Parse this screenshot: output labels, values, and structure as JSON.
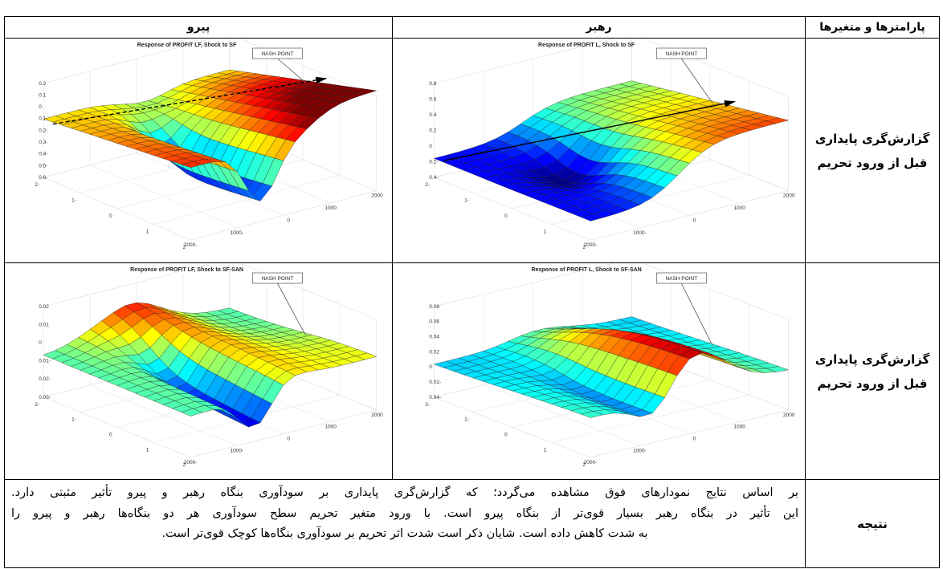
{
  "table": {
    "header": [
      "پارامترها و متغیرها",
      "رهبر",
      "پیرو"
    ],
    "rows": [
      {
        "label": [
          "گزارش‌گری پایداری",
          "قبل از ورود تحریم"
        ],
        "leader": {
          "title": "Response of PROFIT L, Shock to SF",
          "annotation": "NASH POINT",
          "z_ticks": [
            "0.8",
            "0.6",
            "0.4",
            "0.2",
            "0",
            "-0.2",
            "-0.4"
          ],
          "x_ticks": [
            "-2",
            "-1",
            "0",
            "1",
            "2"
          ],
          "y_ticks": [
            "-2000",
            "-1000",
            "0",
            "1000",
            "2000"
          ]
        },
        "follower": {
          "title": "Response of PROFIT LF, Shock to SF",
          "annotation": "NASH POINT",
          "z_ticks": [
            "0.2",
            "0.1",
            "0",
            "-0.1",
            "-0.2",
            "-0.3",
            "-0.4",
            "-0.5",
            "-0.6"
          ],
          "x_ticks": [
            "-2",
            "-1",
            "0",
            "1",
            "2"
          ],
          "y_ticks": [
            "-2000",
            "-1000",
            "0",
            "1000",
            "2000"
          ]
        }
      },
      {
        "label": [
          "گزارش‌گری پایداری",
          "قبل از ورود تحریم"
        ],
        "leader": {
          "title": "Response of  PROFIT L, Shock to SF-SAN",
          "annotation": "NASH POINT",
          "z_ticks": [
            "0.08",
            "0.06",
            "0.04",
            "0.02",
            "0",
            "-0.02",
            "-0.04"
          ],
          "x_ticks": [
            "-2",
            "-1",
            "0",
            "1",
            "2"
          ],
          "y_ticks": [
            "-2000",
            "-1000",
            "0",
            "1000",
            "2000"
          ]
        },
        "follower": {
          "title": "Response of PROFIT LF, Shock to SF-SAN",
          "annotation": "NASH POINT",
          "z_ticks": [
            "0.02",
            "0.01",
            "0",
            "-0.01",
            "-0.02",
            "-0.03"
          ],
          "x_ticks": [
            "-2",
            "-1",
            "0",
            "1",
            "2"
          ],
          "y_ticks": [
            "-2000",
            "-1000",
            "0",
            "1000",
            "2000"
          ]
        }
      }
    ],
    "result": {
      "label": "نتیجه",
      "lines": [
        "بر اساس نتایج نمودارهای فوق مشاهده می‌گردد؛ که گزارش‌گری پایداری بر سودآوری بنگاه رهبر و پیرو تأثیر مثبتی دارد.",
        "این تأثیر در بنگاه رهبر بسیار قوی‌تر از بنگاه پیرو است. با ورود متغیر تحریم سطح سودآوری هر دو بنگاه‌ها رهبر و پیرو را",
        "به شدت کاهش داده است. شایان ذکر است شدت اثر تحریم بر سودآوری بنگاه‌ها کوچک  قوی‌تر است."
      ]
    }
  }
}
